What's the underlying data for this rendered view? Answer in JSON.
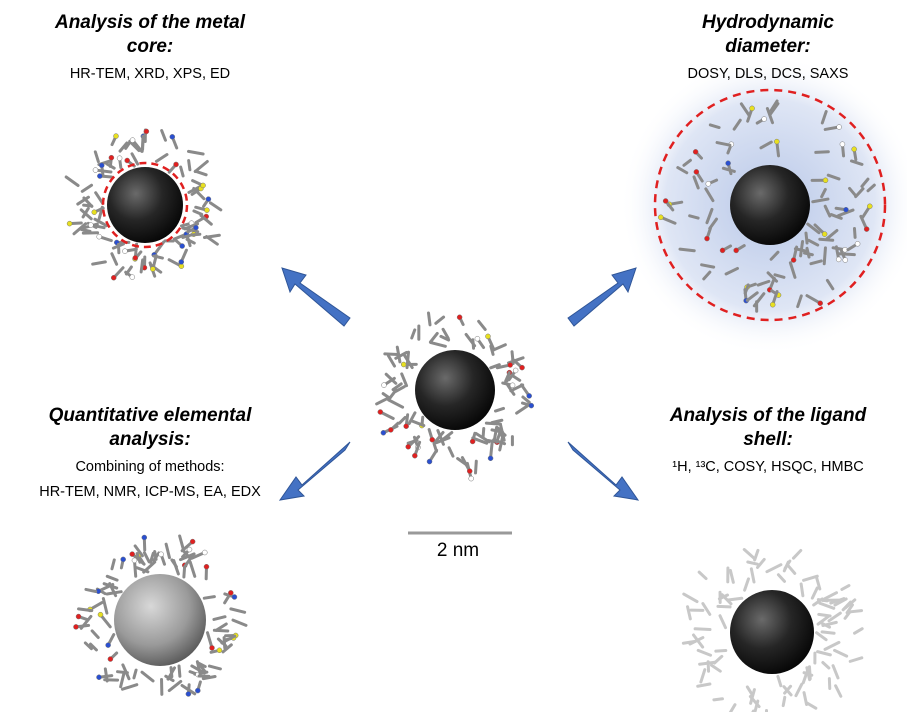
{
  "panels": [
    {
      "title_lines": [
        "Analysis of the metal",
        "core:"
      ],
      "methods": [
        "HR-TEM, XRD, XPS, ED"
      ]
    },
    {
      "title_lines": [
        "Hydrodynamic",
        "diameter:"
      ],
      "methods": [
        "DOSY, DLS, DCS, SAXS"
      ]
    },
    {
      "title_lines": [
        "Quantitative elemental",
        "analysis:"
      ],
      "methods": [
        "Combining of methods:",
        "HR-TEM,  NMR, ICP-MS, EA, EDX"
      ]
    },
    {
      "title_lines": [
        "Analysis of the ligand",
        "shell:"
      ],
      "methods": [
        "¹H, ¹³C, COSY, HSQC, HMBC"
      ]
    }
  ],
  "scale_bar": {
    "label": "2 nm"
  }
}
